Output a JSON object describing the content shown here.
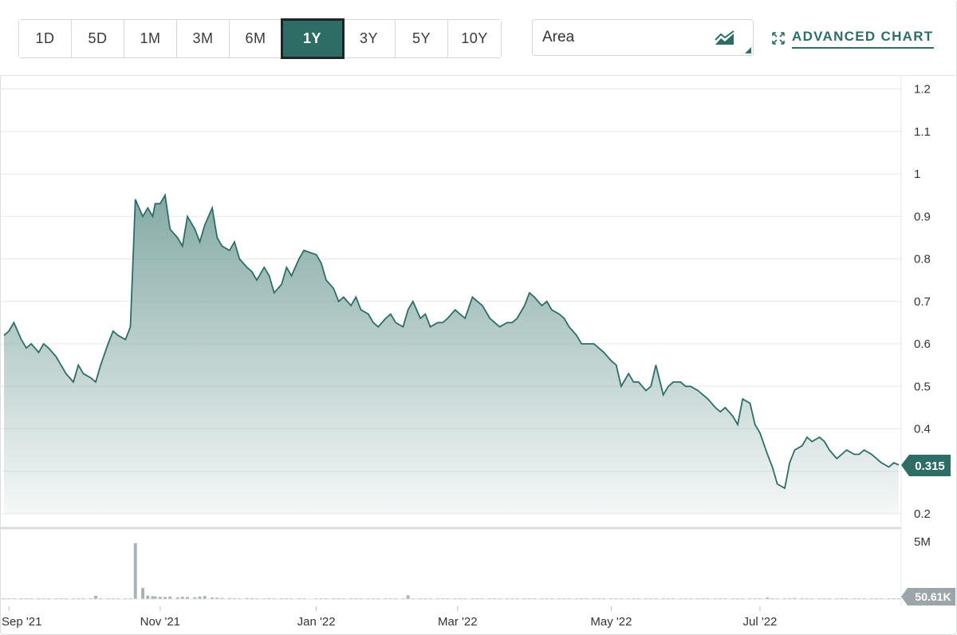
{
  "toolbar": {
    "ranges": [
      "1D",
      "5D",
      "1M",
      "3M",
      "6M",
      "1Y",
      "3Y",
      "5Y",
      "10Y"
    ],
    "active_range": "1Y",
    "chart_type": "Area",
    "advanced_label": "ADVANCED CHART"
  },
  "colors": {
    "accent": "#2e6d66",
    "line": "#2e6d66",
    "area_top": "#7fa6a1",
    "volume": "#a9b3b6"
  },
  "chart_data": {
    "type": "area",
    "x": [
      "2021-08-30",
      "2021-09-01",
      "2021-09-03",
      "2021-09-06",
      "2021-09-08",
      "2021-09-10",
      "2021-09-13",
      "2021-09-15",
      "2021-09-17",
      "2021-09-20",
      "2021-09-22",
      "2021-09-24",
      "2021-09-27",
      "2021-09-29",
      "2021-10-01",
      "2021-10-04",
      "2021-10-06",
      "2021-10-08",
      "2021-10-11",
      "2021-10-13",
      "2021-10-15",
      "2021-10-18",
      "2021-10-20",
      "2021-10-22",
      "2021-10-25",
      "2021-10-27",
      "2021-10-29",
      "2021-10-30",
      "2021-11-01",
      "2021-11-03",
      "2021-11-05",
      "2021-11-08",
      "2021-11-10",
      "2021-11-12",
      "2021-11-15",
      "2021-11-17",
      "2021-11-19",
      "2021-11-22",
      "2021-11-24",
      "2021-11-26",
      "2021-11-29",
      "2021-12-01",
      "2021-12-03",
      "2021-12-06",
      "2021-12-08",
      "2021-12-10",
      "2021-12-13",
      "2021-12-15",
      "2021-12-17",
      "2021-12-20",
      "2021-12-22",
      "2021-12-24",
      "2021-12-27",
      "2021-12-29",
      "2022-01-03",
      "2022-01-05",
      "2022-01-07",
      "2022-01-10",
      "2022-01-12",
      "2022-01-14",
      "2022-01-17",
      "2022-01-19",
      "2022-01-21",
      "2022-01-24",
      "2022-01-26",
      "2022-01-28",
      "2022-01-31",
      "2022-02-02",
      "2022-02-04",
      "2022-02-07",
      "2022-02-09",
      "2022-02-11",
      "2022-02-14",
      "2022-02-16",
      "2022-02-18",
      "2022-02-21",
      "2022-02-23",
      "2022-02-25",
      "2022-02-28",
      "2022-03-02",
      "2022-03-04",
      "2022-03-07",
      "2022-03-09",
      "2022-03-11",
      "2022-03-14",
      "2022-03-16",
      "2022-03-18",
      "2022-03-21",
      "2022-03-23",
      "2022-03-25",
      "2022-03-28",
      "2022-03-30",
      "2022-04-01",
      "2022-04-04",
      "2022-04-06",
      "2022-04-08",
      "2022-04-11",
      "2022-04-13",
      "2022-04-15",
      "2022-04-18",
      "2022-04-20",
      "2022-04-22",
      "2022-04-25",
      "2022-04-27",
      "2022-04-29",
      "2022-05-02",
      "2022-05-04",
      "2022-05-06",
      "2022-05-09",
      "2022-05-11",
      "2022-05-13",
      "2022-05-16",
      "2022-05-18",
      "2022-05-20",
      "2022-05-23",
      "2022-05-25",
      "2022-05-27",
      "2022-05-30",
      "2022-06-01",
      "2022-06-03",
      "2022-06-06",
      "2022-06-08",
      "2022-06-10",
      "2022-06-13",
      "2022-06-15",
      "2022-06-17",
      "2022-06-20",
      "2022-06-22",
      "2022-06-24",
      "2022-06-27",
      "2022-06-29",
      "2022-07-01",
      "2022-07-04",
      "2022-07-06",
      "2022-07-08",
      "2022-07-11",
      "2022-07-13",
      "2022-07-15",
      "2022-07-18",
      "2022-07-20",
      "2022-07-22",
      "2022-07-25",
      "2022-07-27",
      "2022-07-29",
      "2022-08-01",
      "2022-08-03",
      "2022-08-05",
      "2022-08-08",
      "2022-08-10",
      "2022-08-12",
      "2022-08-15",
      "2022-08-17",
      "2022-08-19",
      "2022-08-22",
      "2022-08-24",
      "2022-08-26"
    ],
    "series": [
      {
        "values": [
          0.62,
          0.63,
          0.65,
          0.61,
          0.59,
          0.6,
          0.58,
          0.6,
          0.59,
          0.57,
          0.55,
          0.53,
          0.51,
          0.55,
          0.53,
          0.52,
          0.51,
          0.55,
          0.6,
          0.63,
          0.62,
          0.61,
          0.64,
          0.94,
          0.9,
          0.92,
          0.9,
          0.93,
          0.93,
          0.95,
          0.87,
          0.85,
          0.83,
          0.9,
          0.87,
          0.84,
          0.88,
          0.92,
          0.85,
          0.83,
          0.82,
          0.84,
          0.8,
          0.78,
          0.77,
          0.75,
          0.78,
          0.76,
          0.72,
          0.74,
          0.78,
          0.76,
          0.8,
          0.82,
          0.81,
          0.79,
          0.75,
          0.73,
          0.7,
          0.71,
          0.69,
          0.71,
          0.68,
          0.67,
          0.65,
          0.64,
          0.66,
          0.67,
          0.65,
          0.64,
          0.68,
          0.7,
          0.66,
          0.67,
          0.64,
          0.65,
          0.65,
          0.66,
          0.68,
          0.67,
          0.66,
          0.71,
          0.7,
          0.69,
          0.66,
          0.65,
          0.64,
          0.65,
          0.65,
          0.66,
          0.69,
          0.72,
          0.71,
          0.69,
          0.7,
          0.68,
          0.67,
          0.66,
          0.64,
          0.62,
          0.6,
          0.6,
          0.6,
          0.59,
          0.58,
          0.56,
          0.55,
          0.5,
          0.53,
          0.51,
          0.51,
          0.49,
          0.5,
          0.55,
          0.48,
          0.5,
          0.51,
          0.51,
          0.5,
          0.5,
          0.49,
          0.48,
          0.47,
          0.45,
          0.44,
          0.45,
          0.43,
          0.41,
          0.47,
          0.46,
          0.41,
          0.39,
          0.34,
          0.31,
          0.27,
          0.26,
          0.32,
          0.35,
          0.36,
          0.38,
          0.37,
          0.38,
          0.37,
          0.35,
          0.33,
          0.34,
          0.35,
          0.34,
          0.34,
          0.35,
          0.34,
          0.33,
          0.32,
          0.31,
          0.32,
          0.315
        ]
      }
    ],
    "volume": [
      60,
      40,
      55,
      30,
      50,
      45,
      40,
      35,
      60,
      70,
      40,
      55,
      50,
      45,
      80,
      60,
      280,
      50,
      45,
      40,
      55,
      60,
      50,
      4800,
      950,
      300,
      250,
      240,
      200,
      180,
      220,
      150,
      200,
      180,
      160,
      220,
      260,
      140,
      120,
      100,
      90,
      80,
      70,
      90,
      80,
      70,
      60,
      80,
      60,
      55,
      70,
      60,
      65,
      70,
      60,
      50,
      55,
      45,
      40,
      50,
      45,
      60,
      50,
      70,
      55,
      60,
      65,
      70,
      50,
      55,
      320,
      60,
      45,
      50,
      55,
      40,
      45,
      50,
      45,
      40,
      60,
      55,
      50,
      45,
      40,
      50,
      55,
      45,
      40,
      35,
      45,
      50,
      60,
      55,
      40,
      45,
      50,
      55,
      40,
      35,
      45,
      40,
      50,
      45,
      40,
      40,
      60,
      55,
      45,
      40,
      50,
      45,
      55,
      60,
      50,
      40,
      45,
      40,
      35,
      45,
      50,
      55,
      40,
      45,
      60,
      55,
      50,
      65,
      40,
      50,
      55,
      60,
      140,
      50,
      60,
      70,
      80,
      100,
      80,
      60,
      55,
      50,
      45,
      40,
      50,
      45,
      60,
      55,
      40,
      45,
      60,
      50,
      40,
      35,
      40,
      50
    ],
    "last_price": "0.315",
    "last_volume": "50.61K",
    "y_ticks": [
      "1.2",
      "1.1",
      "1",
      "0.9",
      "0.8",
      "0.7",
      "0.6",
      "0.5",
      "0.4",
      "0.2"
    ],
    "y_tick_values": [
      1.2,
      1.1,
      1.0,
      0.9,
      0.8,
      0.7,
      0.6,
      0.5,
      0.4,
      0.2
    ],
    "ylim": [
      0.2,
      1.2
    ],
    "volume_tick": "5M",
    "x_ticks": [
      {
        "label": "Sep '21",
        "date": "2021-09-01"
      },
      {
        "label": "Nov '21",
        "date": "2021-11-01"
      },
      {
        "label": "Jan '22",
        "date": "2022-01-03"
      },
      {
        "label": "Mar '22",
        "date": "2022-03-01"
      },
      {
        "label": "May '22",
        "date": "2022-05-02"
      },
      {
        "label": "Jul '22",
        "date": "2022-07-01"
      }
    ],
    "grid": true
  }
}
